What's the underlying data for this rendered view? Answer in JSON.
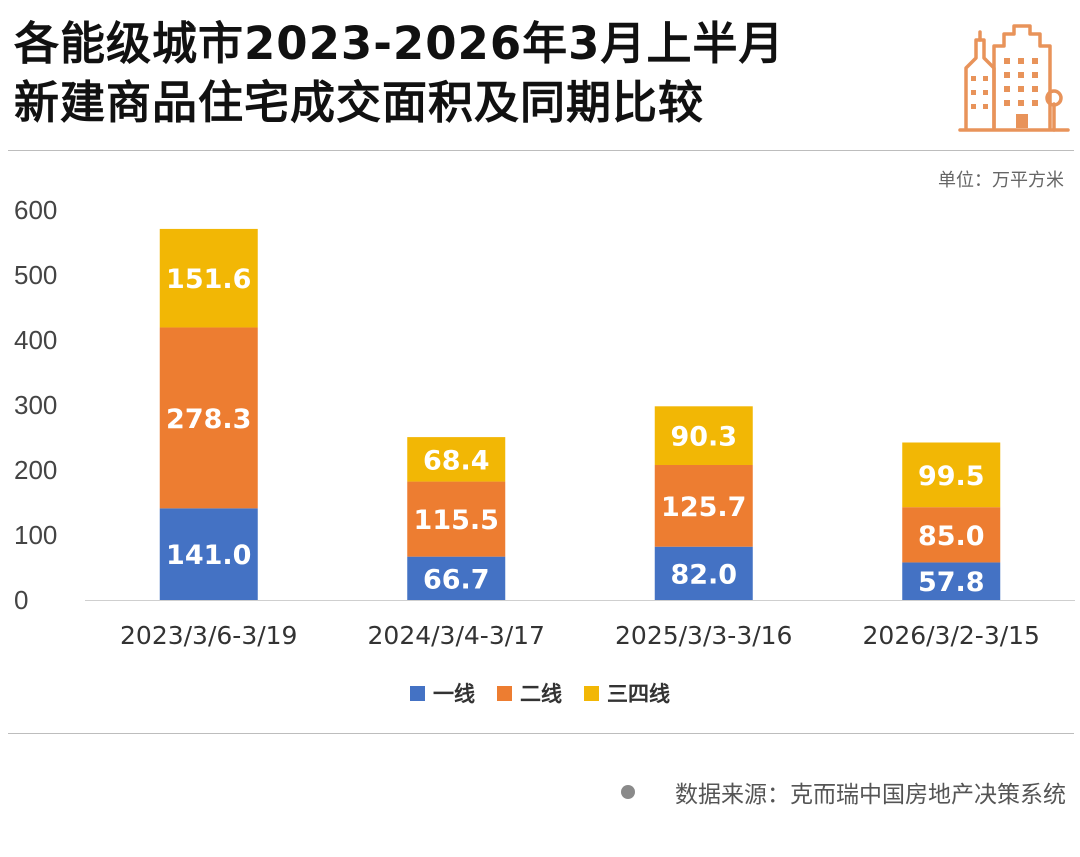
{
  "header": {
    "title_line1": "各能级城市2023-2026年3月上半月",
    "title_line2": "新建商品住宅成交面积及同期比较",
    "unit": "单位：万平方米"
  },
  "chart_data": {
    "type": "bar",
    "stacked": true,
    "title": "各能级城市2023-2026年3月上半月新建商品住宅成交面积及同期比较",
    "ylabel": "万平方米",
    "ylim": [
      0,
      600
    ],
    "yticks": [
      0,
      100,
      200,
      300,
      400,
      500,
      600
    ],
    "grid": false,
    "legend_position": "bottom-center",
    "categories": [
      "2023/3/6-3/19",
      "2024/3/4-3/17",
      "2025/3/3-3/16",
      "2026/3/2-3/15"
    ],
    "series": [
      {
        "name": "一线",
        "color": "#4472C4",
        "values": [
          141.0,
          66.7,
          82.0,
          57.8
        ],
        "labels": [
          "141.0",
          "66.7",
          "82.0",
          "57.8"
        ]
      },
      {
        "name": "二线",
        "color": "#ED7D31",
        "values": [
          278.3,
          115.5,
          125.7,
          85.0
        ],
        "labels": [
          "278.3",
          "115.5",
          "125.7",
          "85.0"
        ]
      },
      {
        "name": "三四线",
        "color": "#F2B705",
        "values": [
          151.6,
          68.4,
          90.3,
          99.5
        ],
        "labels": [
          "151.6",
          "68.4",
          "90.3",
          "99.5"
        ]
      }
    ]
  },
  "footer": {
    "source": "数据来源：克而瑞中国房地产决策系统"
  },
  "icons": {
    "building": "building-icon",
    "source_bullet": "dot-icon"
  },
  "colors": {
    "accent": "#E8935A"
  }
}
